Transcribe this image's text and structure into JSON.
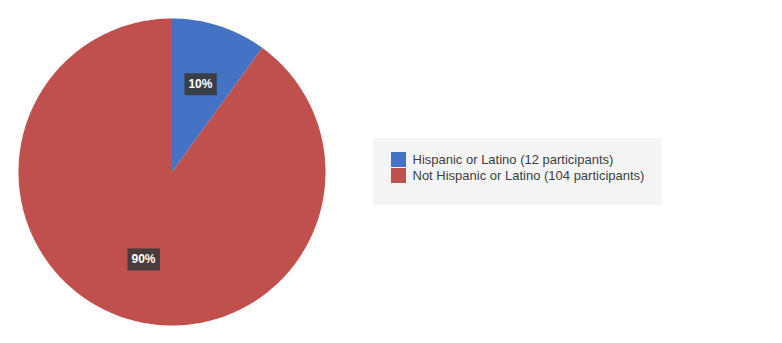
{
  "chart_data": {
    "type": "pie",
    "categories": [
      "Hispanic or Latino (12 participants)",
      "Not Hispanic or Latino (104 participants)"
    ],
    "values": [
      10,
      90
    ],
    "value_labels": [
      "10%",
      "90%"
    ],
    "colors": [
      "#4472C4",
      "#C0504D"
    ],
    "data_labels": true,
    "legend": "right"
  }
}
